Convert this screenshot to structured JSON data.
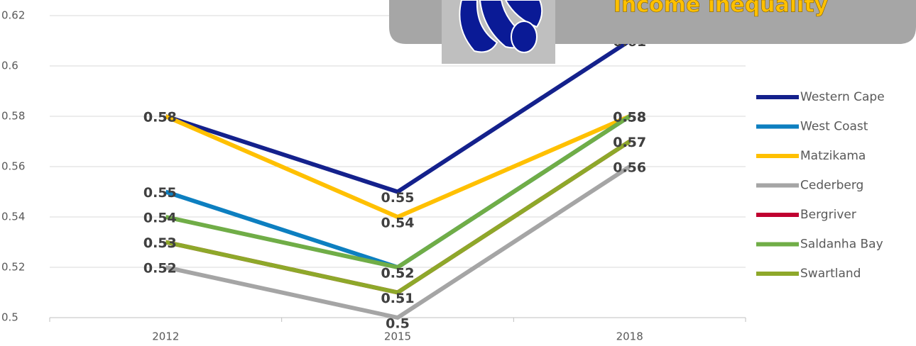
{
  "chart_data": {
    "type": "line",
    "title": "Income inequality",
    "categories": [
      "2012",
      "2015",
      "2018"
    ],
    "series": [
      {
        "name": "Western Cape",
        "color": "#14218c",
        "values": [
          0.58,
          0.55,
          0.61
        ]
      },
      {
        "name": "West Coast",
        "color": "#0d7fc0",
        "values": [
          0.55,
          0.52,
          0.58
        ]
      },
      {
        "name": "Matzikama",
        "color": "#ffc000",
        "values": [
          0.58,
          0.54,
          0.58
        ]
      },
      {
        "name": "Cederberg",
        "color": "#a5a5a5",
        "values": [
          0.52,
          0.5,
          0.56
        ]
      },
      {
        "name": "Bergriver",
        "color": "#c00030",
        "values": [
          0.53,
          0.51,
          0.57
        ]
      },
      {
        "name": "Saldanha Bay",
        "color": "#70ad47",
        "values": [
          0.54,
          0.52,
          0.58
        ]
      },
      {
        "name": "Swartland",
        "color": "#8ea82a",
        "values": [
          0.53,
          0.51,
          0.57
        ]
      }
    ],
    "ylim": [
      0.5,
      0.62
    ],
    "yticks": [
      0.5,
      0.52,
      0.54,
      0.56,
      0.58,
      0.6,
      0.62
    ],
    "grid": true,
    "legend": "right"
  }
}
